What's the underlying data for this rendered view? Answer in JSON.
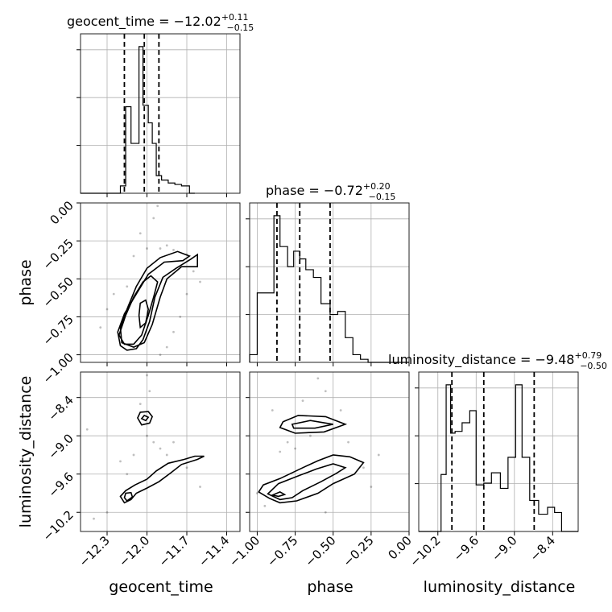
{
  "chart_data": {
    "type": "corner",
    "parameters": [
      "geocent_time",
      "phase",
      "luminosity_distance"
    ],
    "ranges": {
      "geocent_time": [
        -12.5,
        -11.3
      ],
      "phase": [
        -1.05,
        0.0
      ],
      "luminosity_distance": [
        -10.5,
        -8.0
      ]
    },
    "ticks": {
      "geocent_time": {
        "values": [
          -12.3,
          -12.0,
          -11.7,
          -11.4
        ],
        "labels": [
          "−12.3",
          "−12.0",
          "−11.7",
          "−11.4"
        ]
      },
      "phase_x": {
        "values": [
          -1.0,
          -0.75,
          -0.5,
          -0.25,
          0.0
        ],
        "labels": [
          "−1.00",
          "−0.75",
          "−0.50",
          "−0.25",
          "0.00"
        ]
      },
      "phase_y": {
        "values": [
          0.0,
          -0.25,
          -0.5,
          -0.75,
          -1.0
        ],
        "labels": [
          "0.00",
          "−0.25",
          "−0.50",
          "−0.75",
          "−1.00"
        ]
      },
      "luminosity_distance": {
        "values": [
          -10.2,
          -9.6,
          -9.0,
          -8.4
        ],
        "labels": [
          "−10.2",
          "−9.6",
          "−9.0",
          "−8.4"
        ]
      }
    },
    "titles": [
      {
        "param": "geocent_time",
        "text": "geocent_time = −12.02",
        "upper": "+0.11",
        "lower": "−0.15"
      },
      {
        "param": "phase",
        "text": "phase = −0.72",
        "upper": "+0.20",
        "lower": "−0.15"
      },
      {
        "param": "luminosity_distance",
        "text": "luminosity_distance = −9.48",
        "upper": "+0.79",
        "lower": "−0.50"
      }
    ],
    "quantiles": {
      "geocent_time": [
        -12.17,
        -12.02,
        -11.91
      ],
      "phase": [
        -0.87,
        -0.72,
        -0.52
      ],
      "luminosity_distance": [
        -9.98,
        -9.48,
        -8.69
      ]
    },
    "histograms": {
      "geocent_time": {
        "edges": [
          -12.5,
          -12.2,
          -12.16,
          -12.12,
          -12.06,
          -12.03,
          -11.99,
          -11.96,
          -11.93,
          -11.89,
          -11.84,
          -11.79,
          -11.74,
          -11.68,
          -11.64
        ],
        "counts": [
          0,
          0.05,
          0.59,
          0.34,
          1.0,
          0.6,
          0.48,
          0.34,
          0.12,
          0.09,
          0.07,
          0.06,
          0.05,
          0
        ]
      },
      "phase": {
        "edges": [
          -1.05,
          -1.0,
          -0.89,
          -0.85,
          -0.8,
          -0.76,
          -0.72,
          -0.68,
          -0.63,
          -0.58,
          -0.52,
          -0.47,
          -0.42,
          -0.37,
          -0.32,
          -0.27,
          -0.22,
          -0.16,
          0.0
        ],
        "counts": [
          0.05,
          0.45,
          0.95,
          0.75,
          0.62,
          0.72,
          0.67,
          0.6,
          0.55,
          0.38,
          0.31,
          0.33,
          0.16,
          0.05,
          0.02,
          0.0,
          0.0,
          0.0
        ]
      },
      "luminosity_distance": {
        "edges": [
          -10.5,
          -10.15,
          -10.07,
          -10.0,
          -9.93,
          -9.82,
          -9.7,
          -9.6,
          -9.48,
          -9.36,
          -9.22,
          -9.1,
          -8.98,
          -8.88,
          -8.76,
          -8.62,
          -8.48,
          -8.37,
          -8.26,
          -8.0
        ],
        "counts": [
          0.0,
          0.33,
          0.85,
          0.57,
          0.58,
          0.63,
          0.7,
          0.27,
          0.28,
          0.34,
          0.25,
          0.43,
          0.85,
          0.43,
          0.18,
          0.1,
          0.14,
          0.11,
          0.0
        ]
      }
    },
    "contours_2d": [
      {
        "x": "geocent_time",
        "y": "phase",
        "levels": [
          [
            [
              -12.22,
              -0.85
            ],
            [
              -12.2,
              -0.94
            ],
            [
              -12.15,
              -0.97
            ],
            [
              -12.08,
              -0.96
            ],
            [
              -12.03,
              -0.9
            ],
            [
              -11.98,
              -0.78
            ],
            [
              -11.94,
              -0.62
            ],
            [
              -11.88,
              -0.49
            ],
            [
              -11.78,
              -0.43
            ],
            [
              -11.67,
              -0.37
            ],
            [
              -11.62,
              -0.34
            ],
            [
              -11.62,
              -0.42
            ],
            [
              -11.74,
              -0.42
            ],
            [
              -11.85,
              -0.5
            ],
            [
              -11.9,
              -0.62
            ],
            [
              -11.96,
              -0.8
            ],
            [
              -12.02,
              -0.92
            ],
            [
              -12.1,
              -0.95
            ],
            [
              -12.19,
              -0.92
            ],
            [
              -12.2,
              -0.82
            ],
            [
              -12.15,
              -0.7
            ],
            [
              -12.08,
              -0.55
            ],
            [
              -12.0,
              -0.43
            ],
            [
              -11.9,
              -0.36
            ],
            [
              -11.77,
              -0.32
            ],
            [
              -11.68,
              -0.35
            ],
            [
              -11.73,
              -0.38
            ],
            [
              -11.87,
              -0.39
            ],
            [
              -11.99,
              -0.47
            ],
            [
              -12.08,
              -0.6
            ],
            [
              -12.17,
              -0.73
            ],
            [
              -12.22,
              -0.85
            ]
          ],
          [
            [
              -12.21,
              -0.87
            ],
            [
              -12.17,
              -0.93
            ],
            [
              -12.1,
              -0.93
            ],
            [
              -12.04,
              -0.87
            ],
            [
              -11.99,
              -0.74
            ],
            [
              -11.95,
              -0.62
            ],
            [
              -11.92,
              -0.52
            ],
            [
              -11.97,
              -0.48
            ],
            [
              -12.03,
              -0.52
            ],
            [
              -12.1,
              -0.62
            ],
            [
              -12.16,
              -0.74
            ],
            [
              -12.21,
              -0.87
            ]
          ],
          [
            [
              -12.05,
              -0.82
            ],
            [
              -12.01,
              -0.79
            ],
            [
              -11.99,
              -0.7
            ],
            [
              -12.01,
              -0.64
            ],
            [
              -12.05,
              -0.66
            ],
            [
              -12.06,
              -0.74
            ],
            [
              -12.05,
              -0.82
            ]
          ]
        ],
        "fill_levels": [
          0,
          1,
          2
        ]
      },
      {
        "x": "geocent_time",
        "y": "luminosity_distance",
        "levels": [
          [
            [
              -12.07,
              -8.72
            ],
            [
              -12.05,
              -8.63
            ],
            [
              -11.99,
              -8.62
            ],
            [
              -11.96,
              -8.7
            ],
            [
              -11.98,
              -8.8
            ],
            [
              -12.04,
              -8.83
            ],
            [
              -12.07,
              -8.72
            ]
          ],
          [
            [
              -12.04,
              -8.73
            ],
            [
              -12.02,
              -8.68
            ],
            [
              -11.99,
              -8.71
            ],
            [
              -12.01,
              -8.76
            ],
            [
              -12.04,
              -8.73
            ]
          ],
          [
            [
              -12.2,
              -9.95
            ],
            [
              -12.17,
              -10.05
            ],
            [
              -12.12,
              -10.0
            ],
            [
              -12.08,
              -9.9
            ],
            [
              -12.0,
              -9.82
            ],
            [
              -11.91,
              -9.72
            ],
            [
              -11.82,
              -9.58
            ],
            [
              -11.74,
              -9.45
            ],
            [
              -11.62,
              -9.37
            ],
            [
              -11.57,
              -9.32
            ],
            [
              -11.64,
              -9.32
            ],
            [
              -11.72,
              -9.37
            ],
            [
              -11.84,
              -9.43
            ],
            [
              -11.93,
              -9.55
            ],
            [
              -12.0,
              -9.68
            ],
            [
              -12.09,
              -9.77
            ],
            [
              -12.16,
              -9.86
            ],
            [
              -12.2,
              -9.95
            ]
          ],
          [
            [
              -12.17,
              -9.97
            ],
            [
              -12.15,
              -10.02
            ],
            [
              -12.11,
              -9.96
            ],
            [
              -12.12,
              -9.89
            ],
            [
              -12.16,
              -9.9
            ],
            [
              -12.17,
              -9.97
            ]
          ]
        ],
        "fill_levels": [
          0,
          1,
          2,
          3
        ]
      },
      {
        "x": "phase",
        "y": "luminosity_distance",
        "levels": [
          [
            [
              -0.83,
              -8.78
            ],
            [
              -0.73,
              -8.68
            ],
            [
              -0.55,
              -8.7
            ],
            [
              -0.42,
              -8.82
            ],
            [
              -0.56,
              -8.94
            ],
            [
              -0.75,
              -8.96
            ],
            [
              -0.85,
              -8.87
            ],
            [
              -0.83,
              -8.78
            ]
          ],
          [
            [
              -0.77,
              -8.82
            ],
            [
              -0.65,
              -8.76
            ],
            [
              -0.5,
              -8.82
            ],
            [
              -0.62,
              -8.88
            ],
            [
              -0.76,
              -8.88
            ],
            [
              -0.77,
              -8.82
            ]
          ],
          [
            [
              -0.99,
              -9.88
            ],
            [
              -0.92,
              -9.98
            ],
            [
              -0.85,
              -10.05
            ],
            [
              -0.74,
              -10.02
            ],
            [
              -0.6,
              -9.9
            ],
            [
              -0.5,
              -9.75
            ],
            [
              -0.36,
              -9.6
            ],
            [
              -0.3,
              -9.42
            ],
            [
              -0.39,
              -9.33
            ],
            [
              -0.5,
              -9.3
            ],
            [
              -0.6,
              -9.39
            ],
            [
              -0.7,
              -9.5
            ],
            [
              -0.85,
              -9.67
            ],
            [
              -0.96,
              -9.77
            ],
            [
              -0.99,
              -9.88
            ]
          ],
          [
            [
              -0.93,
              -9.91
            ],
            [
              -0.85,
              -10.0
            ],
            [
              -0.77,
              -9.97
            ],
            [
              -0.7,
              -9.86
            ],
            [
              -0.58,
              -9.72
            ],
            [
              -0.48,
              -9.59
            ],
            [
              -0.42,
              -9.5
            ],
            [
              -0.5,
              -9.44
            ],
            [
              -0.61,
              -9.52
            ],
            [
              -0.72,
              -9.62
            ],
            [
              -0.86,
              -9.75
            ],
            [
              -0.93,
              -9.91
            ]
          ],
          [
            [
              -0.9,
              -9.93
            ],
            [
              -0.86,
              -9.95
            ],
            [
              -0.82,
              -9.92
            ],
            [
              -0.85,
              -9.88
            ],
            [
              -0.9,
              -9.93
            ]
          ]
        ],
        "fill_levels": [
          0,
          1,
          2,
          3,
          4
        ]
      }
    ],
    "scatter_2d": [
      {
        "x": "geocent_time",
        "y": "phase",
        "points": [
          [
            -12.1,
            -0.35
          ],
          [
            -12.05,
            -0.2
          ],
          [
            -11.95,
            -0.1
          ],
          [
            -12.0,
            -0.3
          ],
          [
            -11.9,
            -0.3
          ],
          [
            -11.85,
            -0.28
          ],
          [
            -11.8,
            -0.31
          ],
          [
            -11.7,
            -0.34
          ],
          [
            -11.65,
            -0.45
          ],
          [
            -11.7,
            -0.6
          ],
          [
            -11.75,
            -0.75
          ],
          [
            -11.8,
            -0.85
          ],
          [
            -11.85,
            -0.95
          ],
          [
            -11.9,
            -1.0
          ],
          [
            -12.3,
            -0.7
          ],
          [
            -12.35,
            -0.82
          ],
          [
            -12.25,
            -0.6
          ],
          [
            -11.6,
            -0.52
          ],
          [
            -11.92,
            -0.02
          ],
          [
            -12.15,
            -0.55
          ]
        ]
      },
      {
        "x": "geocent_time",
        "y": "luminosity_distance",
        "points": [
          [
            -12.0,
            -8.05
          ],
          [
            -11.98,
            -8.3
          ],
          [
            -12.0,
            -9.0
          ],
          [
            -11.95,
            -9.1
          ],
          [
            -11.9,
            -9.2
          ],
          [
            -11.85,
            -9.3
          ],
          [
            -12.1,
            -9.3
          ],
          [
            -12.2,
            -9.4
          ],
          [
            -12.4,
            -10.3
          ],
          [
            -12.3,
            -10.2
          ],
          [
            -11.7,
            -9.5
          ],
          [
            -11.8,
            -9.1
          ],
          [
            -12.05,
            -8.5
          ],
          [
            -12.15,
            -9.6
          ],
          [
            -11.6,
            -9.8
          ],
          [
            -12.45,
            -8.9
          ]
        ]
      },
      {
        "x": "phase",
        "y": "luminosity_distance",
        "points": [
          [
            -0.6,
            -8.1
          ],
          [
            -0.55,
            -8.3
          ],
          [
            -0.7,
            -8.45
          ],
          [
            -0.8,
            -9.1
          ],
          [
            -0.75,
            -9.2
          ],
          [
            -0.85,
            -9.25
          ],
          [
            -0.4,
            -9.1
          ],
          [
            -0.3,
            -9.5
          ],
          [
            -0.25,
            -9.8
          ],
          [
            -1.0,
            -9.9
          ],
          [
            -0.95,
            -10.1
          ],
          [
            -0.55,
            -10.2
          ],
          [
            -0.2,
            -9.3
          ],
          [
            -0.65,
            -9.0
          ],
          [
            -0.9,
            -8.6
          ],
          [
            -0.45,
            -8.6
          ]
        ]
      }
    ]
  }
}
